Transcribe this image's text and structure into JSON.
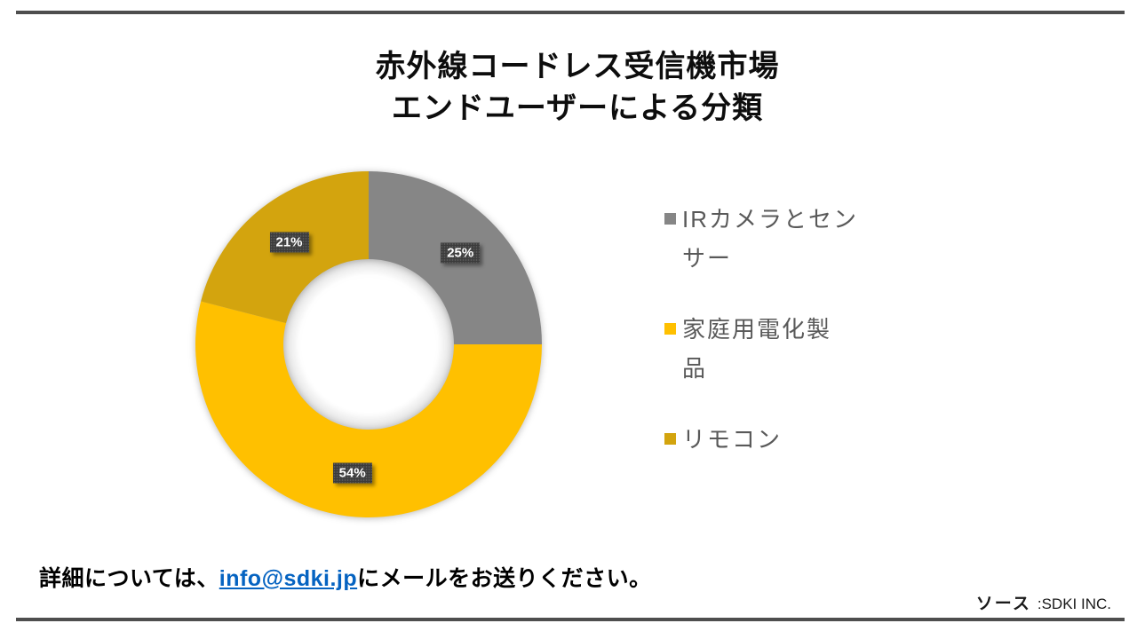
{
  "title": {
    "lines": [
      "赤外線コードレス受信機市場",
      "エンドユーザーによる分類"
    ]
  },
  "chart_data": {
    "type": "pie",
    "subtype": "donut",
    "title": "赤外線コードレス受信機市場 エンドユーザーによる分類",
    "categories": [
      "IRカメラとセンサー",
      "家庭用電化製品",
      "リモコン"
    ],
    "values": [
      25,
      54,
      21
    ],
    "unit": "%",
    "data_labels": [
      "25%",
      "54%",
      "21%"
    ],
    "colors": [
      "#868686",
      "#FFC000",
      "#D3A40E"
    ],
    "start_angle_deg": 0,
    "direction": "clockwise",
    "inner_radius_ratio": 0.49,
    "legend_position": "right",
    "label_box_color": "#3b3b3b",
    "label_text_color": "#ffffff"
  },
  "legend": {
    "items": [
      {
        "label": "IRカメラとセンサー",
        "lines": [
          "IRカメラとセン",
          "サー"
        ]
      },
      {
        "label": "家庭用電化製品",
        "lines": [
          "家庭用電化製",
          "品"
        ]
      },
      {
        "label": "リモコン",
        "lines": [
          "リモコン"
        ]
      }
    ],
    "text_color": "#595959"
  },
  "footer": {
    "prefix": "詳細については、",
    "email": "info@sdki.jp",
    "suffix": "にメールをお送りください。",
    "link_color": "#0563C1"
  },
  "source": {
    "label": "ソース",
    "separator": ":",
    "company": "SDKI INC."
  },
  "rules_color": "#4e4e4e"
}
